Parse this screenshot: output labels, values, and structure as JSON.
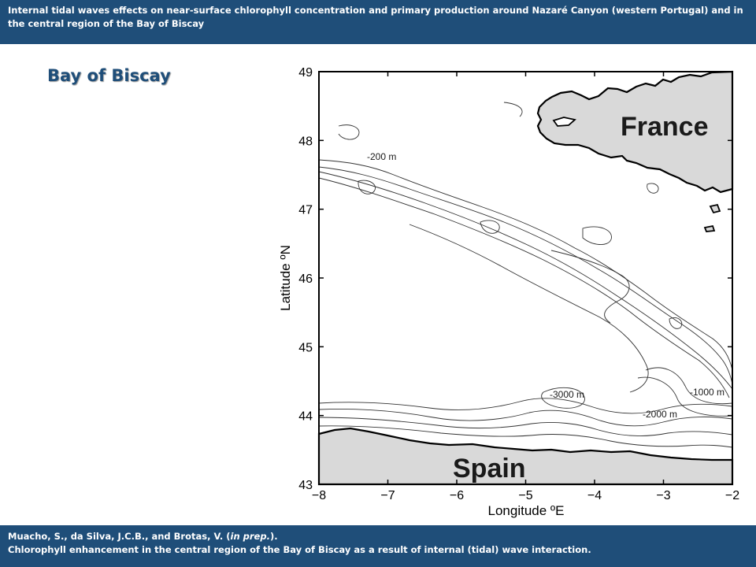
{
  "header": {
    "title": "Internal tidal waves effects on near-surface chlorophyll concentration and primary production around Nazaré Canyon (western Portugal) and in the central region of the Bay of Biscay"
  },
  "slide_title": "Bay of Biscay",
  "map": {
    "xlabel": "Longitude ºE",
    "ylabel": "Latitude ºN",
    "x_range": [
      -8,
      -2
    ],
    "y_range": [
      43,
      49
    ],
    "x_ticks": [
      -8,
      -7,
      -6,
      -5,
      -4,
      -3,
      -2
    ],
    "y_ticks": [
      43,
      44,
      45,
      46,
      47,
      48,
      49
    ],
    "x_tick_labels": [
      "−8",
      "−7",
      "−6",
      "−5",
      "−4",
      "−3",
      "−2"
    ],
    "y_tick_labels": [
      "43",
      "44",
      "45",
      "46",
      "47",
      "48",
      "49"
    ],
    "land_labels": {
      "france": "France",
      "spain": "Spain"
    },
    "contour_labels": {
      "c200": "-200 m",
      "c3000": "-3000 m",
      "c1000": "-1000 m",
      "c2000": "-2000 m"
    },
    "colors": {
      "land": "#d9d9d9",
      "coast": "#000000",
      "contour": "#333333",
      "frame": "#000000"
    }
  },
  "footer": {
    "citation_authors": "Muacho, S., da Silva, J.C.B., and Brotas, V. (",
    "citation_status": "in prep.",
    "citation_end": ").",
    "citation_title": "Chlorophyll enhancement in the central region of the Bay of Biscay as a result of internal (tidal) wave interaction."
  }
}
